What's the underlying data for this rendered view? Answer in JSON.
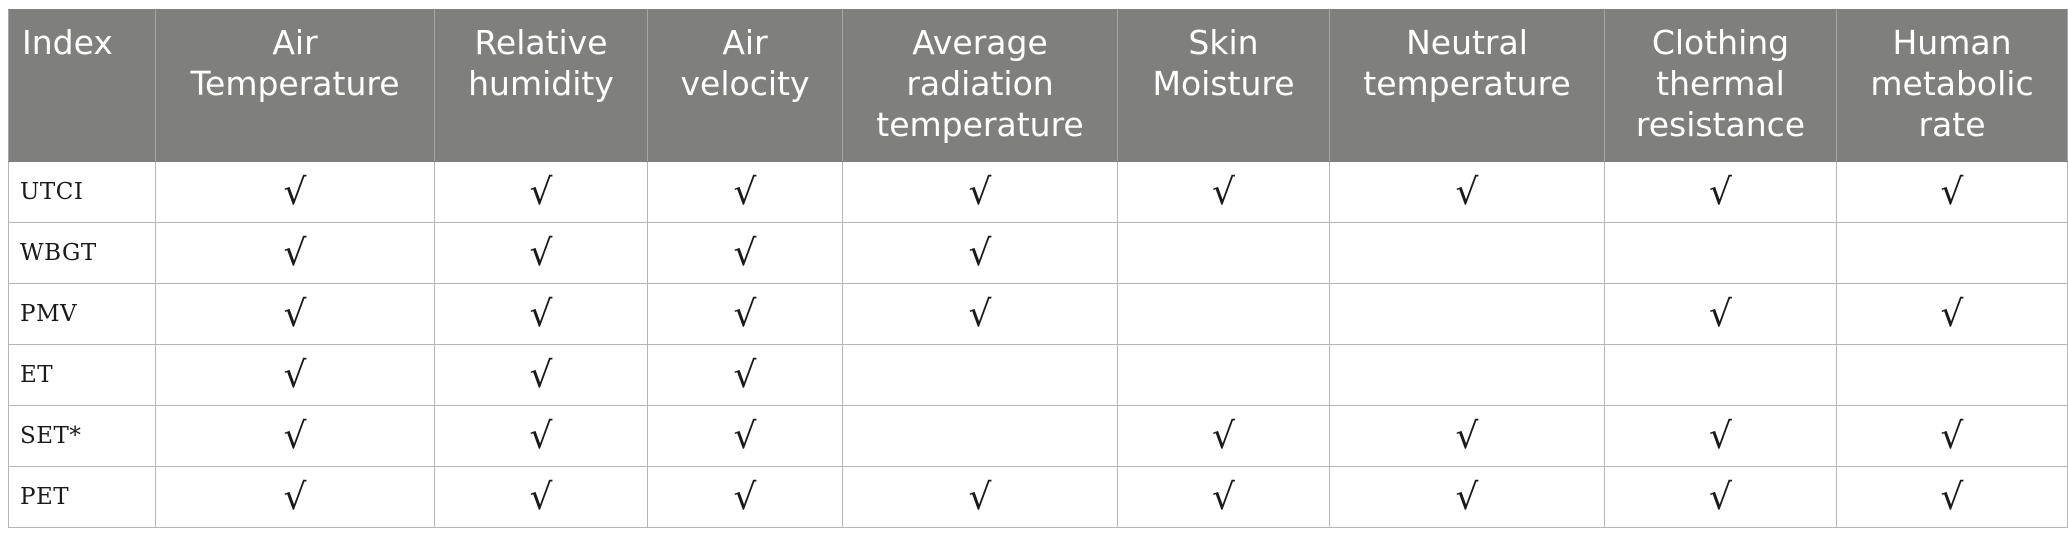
{
  "table": {
    "columns": [
      "Index",
      "Air\nTemperature",
      "Relative\nhumidity",
      "Air\nvelocity",
      "Average\nradiation\ntemperature",
      "Skin\nMoisture",
      "Neutral\ntemperature",
      "Clothing\nthermal\nresistance",
      "Human\nmetabolic\nrate"
    ],
    "check_mark": "√",
    "rows": [
      {
        "index": "UTCI",
        "cells": [
          "√",
          "√",
          "√",
          "√",
          "√",
          "√",
          "√",
          "√"
        ]
      },
      {
        "index": "WBGT",
        "cells": [
          "√",
          "√",
          "√",
          "√",
          "",
          "",
          "",
          ""
        ]
      },
      {
        "index": "PMV",
        "cells": [
          "√",
          "√",
          "√",
          "√",
          "",
          "",
          "√",
          "√"
        ]
      },
      {
        "index": "ET",
        "cells": [
          "√",
          "√",
          "√",
          "",
          "",
          "",
          "",
          ""
        ]
      },
      {
        "index": "SET*",
        "cells": [
          "√",
          "√",
          "√",
          "",
          "√",
          "√",
          "√",
          "√"
        ]
      },
      {
        "index": "PET",
        "cells": [
          "√",
          "√",
          "√",
          "√",
          "√",
          "√",
          "√",
          "√"
        ]
      }
    ]
  },
  "colors": {
    "header_background": "#7f807e",
    "header_text": "#ffffff",
    "grid_line": "#b5b5b5",
    "body_text": "#1a1a1a"
  }
}
